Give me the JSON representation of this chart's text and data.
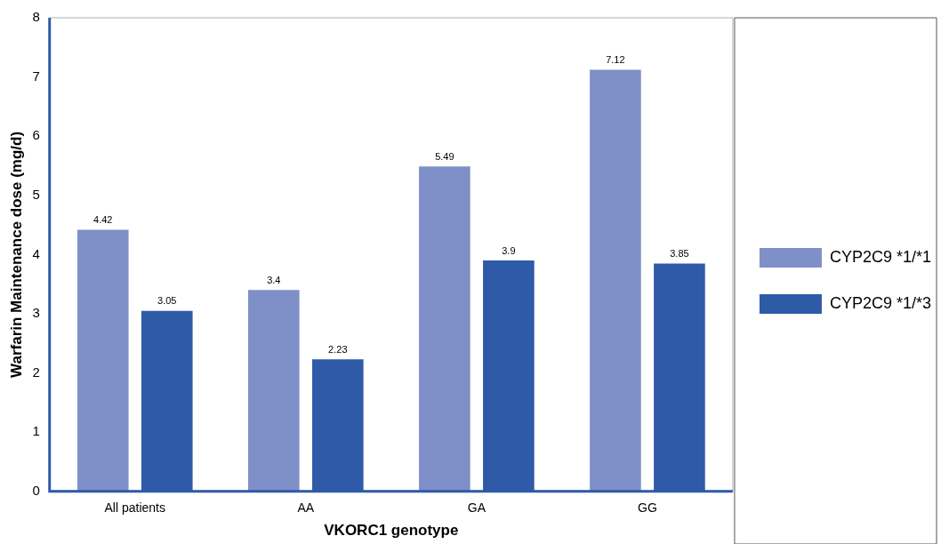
{
  "chart_data": {
    "type": "bar",
    "xlabel": "VKORC1 genotype",
    "ylabel": "Warfarin Maintenance dose (mg/d)",
    "categories": [
      "All patients",
      "AA",
      "GA",
      "GG"
    ],
    "series": [
      {
        "name": "CYP2C9 *1/*1",
        "color": "#7f8fc8",
        "values": [
          4.42,
          3.4,
          5.49,
          7.12
        ]
      },
      {
        "name": "CYP2C9 *1/*3",
        "color": "#2e5aa8",
        "values": [
          3.05,
          2.23,
          3.9,
          3.85
        ]
      }
    ],
    "ylim": [
      0,
      8
    ],
    "yticks": [
      0,
      1,
      2,
      3,
      4,
      5,
      6,
      7,
      8
    ],
    "grid": false,
    "legend": "right",
    "data_labels": true
  }
}
